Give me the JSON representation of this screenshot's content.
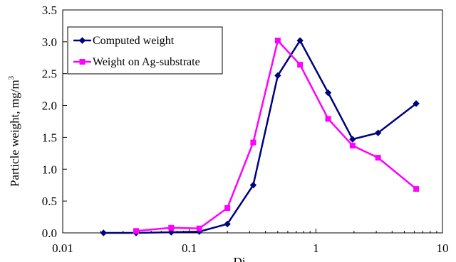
{
  "chart_data": {
    "type": "line",
    "title": "",
    "xlabel": "Di",
    "ylabel": "Particle weight, mg/m",
    "ylabel_superscript": "3",
    "x_scale": "log",
    "xlim": [
      0.01,
      10
    ],
    "ylim": [
      0.0,
      3.5
    ],
    "x_ticks": [
      0.01,
      0.1,
      1,
      10
    ],
    "x_tick_labels": [
      "0.01",
      "0.1",
      "1",
      "10"
    ],
    "y_ticks": [
      0.0,
      0.5,
      1.0,
      1.5,
      2.0,
      2.5,
      3.0,
      3.5
    ],
    "y_tick_labels": [
      "0.0",
      "0.5",
      "1.0",
      "1.5",
      "2.0",
      "2.5",
      "3.0",
      "3.5"
    ],
    "grid": false,
    "legend_position": "top-left",
    "series": [
      {
        "name": "Computed weight",
        "color": "#000080",
        "marker": "diamond",
        "x": [
          0.021,
          0.038,
          0.072,
          0.12,
          0.2,
          0.32,
          0.5,
          0.75,
          1.25,
          1.95,
          3.1,
          6.2
        ],
        "y": [
          0.0,
          0.0,
          0.01,
          0.02,
          0.14,
          0.75,
          2.47,
          3.02,
          2.2,
          1.47,
          1.57,
          2.03
        ]
      },
      {
        "name": "Weight on Ag-substrate",
        "color": "#ff00ff",
        "marker": "square",
        "x": [
          0.038,
          0.072,
          0.12,
          0.2,
          0.32,
          0.5,
          0.75,
          1.25,
          1.95,
          3.1,
          6.2
        ],
        "y": [
          0.03,
          0.08,
          0.07,
          0.39,
          1.42,
          3.02,
          2.64,
          1.79,
          1.37,
          1.18,
          0.69
        ]
      }
    ]
  }
}
